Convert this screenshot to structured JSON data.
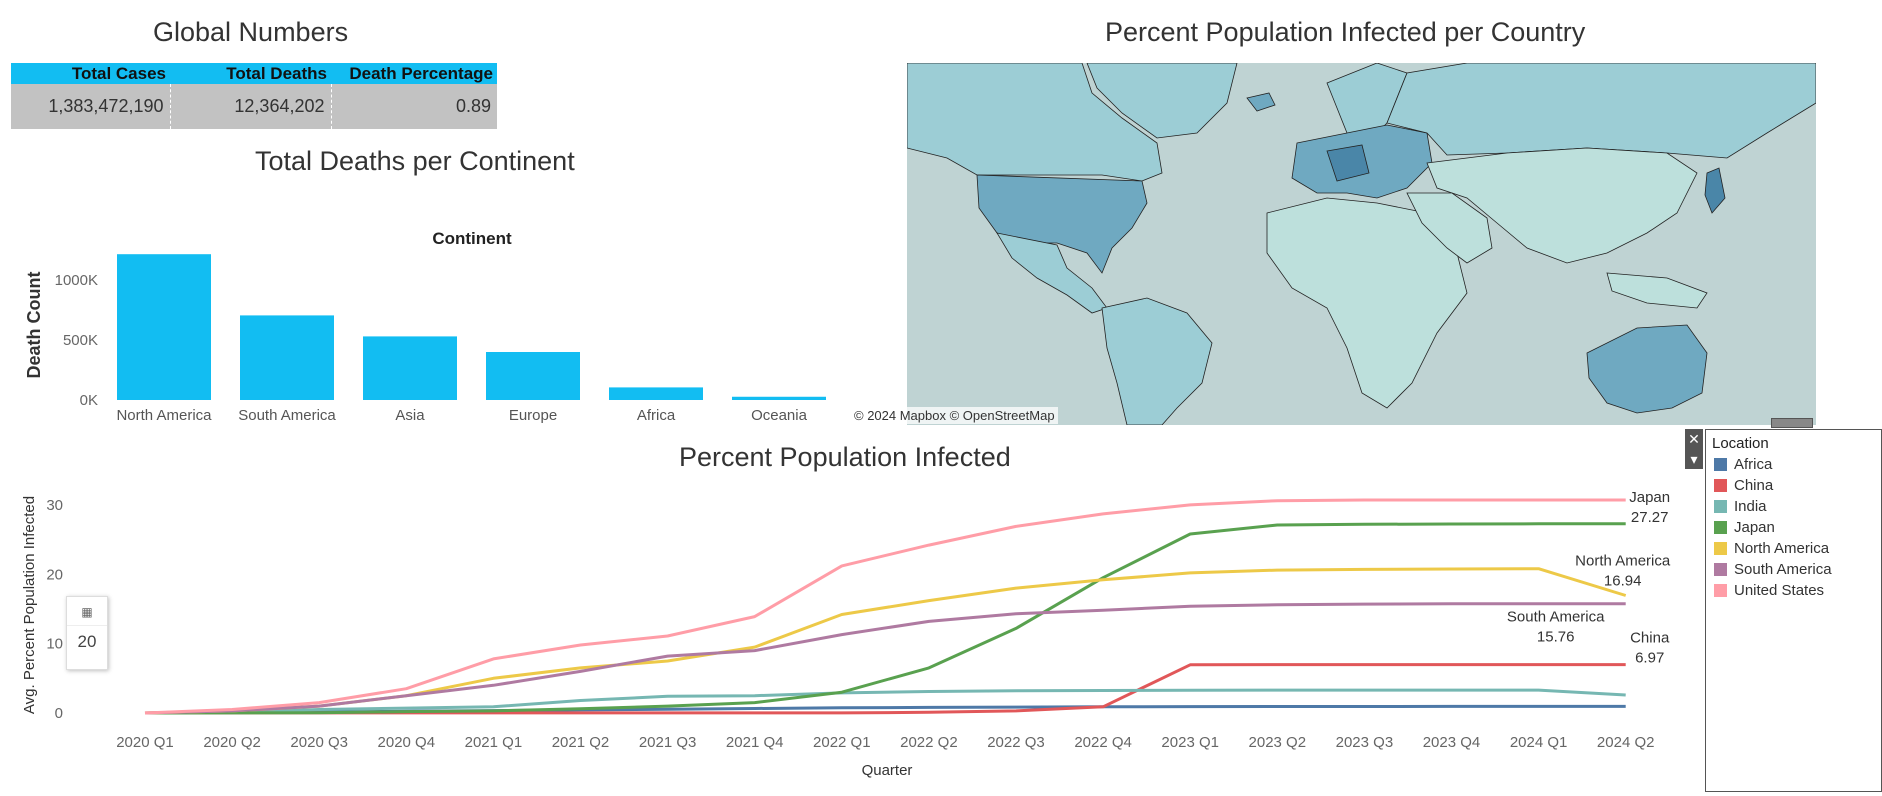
{
  "global_numbers": {
    "title": "Global Numbers",
    "columns": [
      "Total Cases",
      "Total Deaths",
      "Death Percentage"
    ],
    "values": [
      "1,383,472,190",
      "12,364,202",
      "0.89"
    ]
  },
  "map": {
    "title": "Percent Population Infected per Country",
    "attribution": "© 2024 Mapbox © OpenStreetMap",
    "colors": {
      "ocean": "#bfd3d3",
      "low": "#bde0dc",
      "mid": "#9ccdd5",
      "high": "#6fa9c1",
      "highest": "#4a86a8"
    }
  },
  "legend": {
    "title": "Location",
    "items": [
      {
        "label": "Africa",
        "color": "#4e79a7"
      },
      {
        "label": "China",
        "color": "#e15759"
      },
      {
        "label": "India",
        "color": "#76b7b2"
      },
      {
        "label": "Japan",
        "color": "#59a14f"
      },
      {
        "label": "North America",
        "color": "#edc948"
      },
      {
        "label": "South America",
        "color": "#af7aa1"
      },
      {
        "label": "United States",
        "color": "#ff9da7"
      }
    ]
  },
  "zoom_control": {
    "value": "20",
    "icon": "grid-icon"
  },
  "chart_data": [
    {
      "type": "bar",
      "title": "Total Deaths per Continent",
      "header": "Continent",
      "ylabel": "Death Count",
      "categories": [
        "North America",
        "South America",
        "Asia",
        "Europe",
        "Africa",
        "Oceania"
      ],
      "values": [
        1215000,
        705000,
        530000,
        400000,
        105000,
        27000
      ],
      "ylim": [
        0,
        1250000
      ],
      "yticks": [
        0,
        500000,
        1000000
      ],
      "ytick_labels": [
        "0K",
        "500K",
        "1000K"
      ],
      "color": "#12bdf2",
      "grid": false
    },
    {
      "type": "line",
      "title": "Percent Population Infected",
      "xlabel": "Quarter",
      "ylabel": "Avg. Percent Population Infected",
      "categories": [
        "2020 Q1",
        "2020 Q2",
        "2020 Q3",
        "2020 Q4",
        "2021 Q1",
        "2021 Q2",
        "2021 Q3",
        "2021 Q4",
        "2022 Q1",
        "2022 Q2",
        "2022 Q3",
        "2022 Q4",
        "2023 Q1",
        "2023 Q2",
        "2023 Q3",
        "2023 Q4",
        "2024 Q1",
        "2024 Q2"
      ],
      "ylim": [
        0,
        32
      ],
      "yticks": [
        0,
        10,
        20,
        30
      ],
      "grid": false,
      "series": [
        {
          "name": "Africa",
          "color": "#4e79a7",
          "values": [
            0,
            0.05,
            0.15,
            0.25,
            0.35,
            0.45,
            0.55,
            0.65,
            0.75,
            0.8,
            0.85,
            0.9,
            0.92,
            0.93,
            0.94,
            0.95,
            0.95,
            0.95
          ]
        },
        {
          "name": "China",
          "color": "#e15759",
          "values": [
            0.01,
            0.01,
            0.01,
            0.01,
            0.01,
            0.01,
            0.01,
            0.01,
            0.02,
            0.1,
            0.3,
            0.9,
            6.95,
            6.97,
            6.97,
            6.97,
            6.97,
            6.97
          ]
        },
        {
          "name": "India",
          "color": "#76b7b2",
          "values": [
            0,
            0.1,
            0.5,
            0.7,
            0.9,
            1.8,
            2.4,
            2.5,
            2.9,
            3.1,
            3.2,
            3.25,
            3.28,
            3.3,
            3.3,
            3.3,
            3.3,
            2.6
          ]
        },
        {
          "name": "Japan",
          "color": "#59a14f",
          "values": [
            0,
            0.02,
            0.03,
            0.2,
            0.3,
            0.6,
            1.0,
            1.5,
            3.0,
            6.5,
            12.2,
            19.5,
            25.8,
            27.1,
            27.2,
            27.25,
            27.27,
            27.27
          ]
        },
        {
          "name": "North America",
          "color": "#edc948",
          "values": [
            0,
            0.3,
            1.0,
            2.5,
            5.0,
            6.5,
            7.5,
            9.5,
            14.2,
            16.2,
            18.0,
            19.2,
            20.2,
            20.6,
            20.7,
            20.75,
            20.8,
            16.94
          ]
        },
        {
          "name": "South America",
          "color": "#af7aa1",
          "values": [
            0,
            0.3,
            1.0,
            2.5,
            4.0,
            6.0,
            8.2,
            9.0,
            11.3,
            13.2,
            14.3,
            14.8,
            15.4,
            15.6,
            15.7,
            15.74,
            15.76,
            15.76
          ]
        },
        {
          "name": "United States",
          "color": "#ff9da7",
          "values": [
            0,
            0.5,
            1.5,
            3.5,
            7.8,
            9.8,
            11.1,
            13.9,
            21.2,
            24.2,
            26.9,
            28.7,
            30.0,
            30.6,
            30.7,
            30.7,
            30.7,
            30.7
          ]
        }
      ],
      "end_labels": [
        {
          "name": "Japan",
          "value": "27.27"
        },
        {
          "name": "North America",
          "value": "16.94"
        },
        {
          "name": "South America",
          "value": "15.76"
        },
        {
          "name": "China",
          "value": "6.97"
        }
      ]
    }
  ]
}
